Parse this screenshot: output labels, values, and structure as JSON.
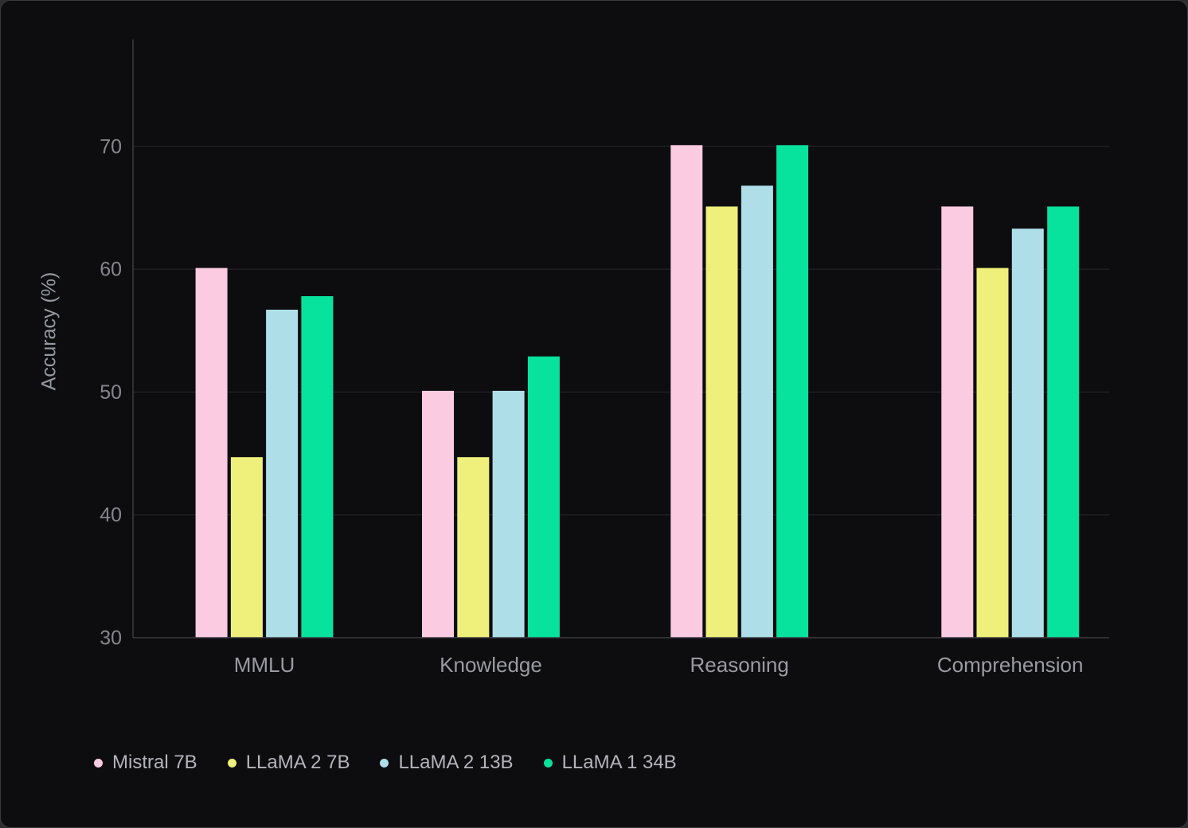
{
  "chart_data": {
    "type": "bar",
    "title": "",
    "categories": [
      "MMLU",
      "Knowledge",
      "Reasoning",
      "Comprehension"
    ],
    "series": [
      {
        "name": "Mistral 7B",
        "color": "#fbcbe1",
        "values": [
          60.1,
          50.1,
          70.1,
          65.1
        ]
      },
      {
        "name": "LLaMA 2 7B",
        "color": "#eef07b",
        "values": [
          44.7,
          44.7,
          65.1,
          60.1
        ]
      },
      {
        "name": "LLaMA 2 13B",
        "color": "#aedfe9",
        "values": [
          56.7,
          50.1,
          66.8,
          63.3
        ]
      },
      {
        "name": "LLaMA 1 34B",
        "color": "#07e29d",
        "values": [
          57.8,
          52.9,
          70.1,
          65.1
        ]
      }
    ],
    "xlabel": "",
    "ylabel": "Accuracy (%)",
    "yticks": [
      30,
      40,
      50,
      60,
      70
    ],
    "ylim": [
      30,
      78.7
    ],
    "grid": "horizontal",
    "legend_position": "bottom-left",
    "colors": {
      "panel_background": "#0d0d0f",
      "grid_line": "#28282c",
      "axis_line": "#3b3b41",
      "tick_text": "#85858d",
      "category_text": "#9a9aa2",
      "legend_text": "#b4b4bc"
    }
  }
}
